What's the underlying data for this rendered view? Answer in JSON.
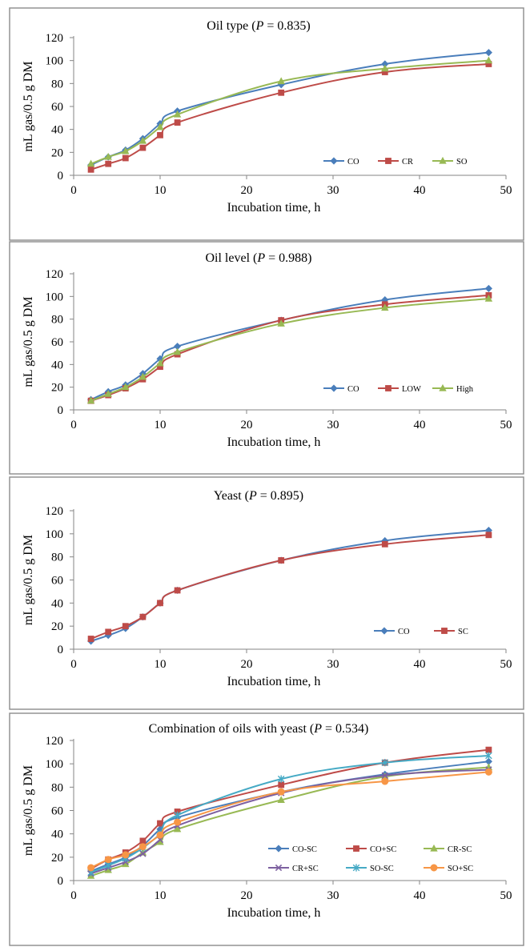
{
  "chart_data": [
    {
      "type": "line",
      "title_prefix": "Oil type (",
      "title_p": "P",
      "title_suffix": " = 0.835)",
      "xlabel": "Incubation time, h",
      "ylabel": "mL gas/0.5 g DM",
      "xlim": [
        0,
        50
      ],
      "ylim": [
        0,
        120
      ],
      "xticks": [
        0,
        10,
        20,
        30,
        40,
        50
      ],
      "yticks": [
        0,
        20,
        40,
        60,
        80,
        100,
        120
      ],
      "legend_position": "bottom-right",
      "x": [
        2,
        4,
        6,
        8,
        10,
        12,
        24,
        36,
        48
      ],
      "series": [
        {
          "name": "CO",
          "color": "#4a7ebb",
          "marker": "diamond",
          "values": [
            9,
            16,
            22,
            32,
            45,
            56,
            79,
            97,
            107
          ]
        },
        {
          "name": "CR",
          "color": "#be4b48",
          "marker": "square",
          "values": [
            5,
            10,
            15,
            24,
            35,
            46,
            72,
            90,
            97
          ]
        },
        {
          "name": "SO",
          "color": "#98b954",
          "marker": "triangle",
          "values": [
            10,
            16,
            21,
            30,
            42,
            53,
            82,
            93,
            100
          ]
        }
      ]
    },
    {
      "type": "line",
      "title_prefix": "Oil level (",
      "title_p": "P",
      "title_suffix": " = 0.988)",
      "xlabel": "Incubation time, h",
      "ylabel": "mL gas/0.5 g DM",
      "xlim": [
        0,
        50
      ],
      "ylim": [
        0,
        120
      ],
      "xticks": [
        0,
        10,
        20,
        30,
        40,
        50
      ],
      "yticks": [
        0,
        20,
        40,
        60,
        80,
        100,
        120
      ],
      "legend_position": "bottom-right",
      "x": [
        2,
        4,
        6,
        8,
        10,
        12,
        24,
        36,
        48
      ],
      "series": [
        {
          "name": "CO",
          "color": "#4a7ebb",
          "marker": "diamond",
          "values": [
            9,
            16,
            22,
            32,
            45,
            56,
            79,
            97,
            107
          ]
        },
        {
          "name": "LOW",
          "color": "#be4b48",
          "marker": "square",
          "values": [
            8,
            13,
            19,
            27,
            38,
            49,
            79,
            93,
            101
          ]
        },
        {
          "name": "High",
          "color": "#98b954",
          "marker": "triangle",
          "values": [
            8,
            14,
            20,
            29,
            41,
            51,
            76,
            90,
            98
          ]
        }
      ]
    },
    {
      "type": "line",
      "title_prefix": "Yeast (",
      "title_p": "P",
      "title_suffix": " = 0.895)",
      "xlabel": "Incubation time, h",
      "ylabel": "mL gas/0.5 g DM",
      "xlim": [
        0,
        50
      ],
      "ylim": [
        0,
        120
      ],
      "xticks": [
        0,
        10,
        20,
        30,
        40,
        50
      ],
      "yticks": [
        0,
        20,
        40,
        60,
        80,
        100,
        120
      ],
      "legend_position": "bottom-right",
      "x": [
        2,
        4,
        6,
        8,
        10,
        12,
        24,
        36,
        48
      ],
      "series": [
        {
          "name": "CO",
          "color": "#4a7ebb",
          "marker": "diamond",
          "values": [
            7,
            12,
            18,
            28,
            40,
            51,
            77,
            94,
            103
          ]
        },
        {
          "name": "SC",
          "color": "#be4b48",
          "marker": "square",
          "values": [
            9,
            15,
            20,
            28,
            40,
            51,
            77,
            91,
            99
          ]
        }
      ]
    },
    {
      "type": "line",
      "title_prefix": "Combination of oils with yeast (",
      "title_p": "P",
      "title_suffix": " = 0.534)",
      "xlabel": "Incubation time, h",
      "ylabel": "mL gas/0.5 g DM",
      "xlim": [
        0,
        50
      ],
      "ylim": [
        0,
        120
      ],
      "xticks": [
        0,
        10,
        20,
        30,
        40,
        50
      ],
      "yticks": [
        0,
        20,
        40,
        60,
        80,
        100,
        120
      ],
      "legend_position": "bottom-right",
      "x": [
        2,
        4,
        6,
        8,
        10,
        12,
        24,
        36,
        48
      ],
      "series": [
        {
          "name": "CO-SC",
          "color": "#4a7ebb",
          "marker": "diamond",
          "values": [
            8,
            14,
            20,
            30,
            44,
            54,
            76,
            91,
            102
          ]
        },
        {
          "name": "CO+SC",
          "color": "#be4b48",
          "marker": "square",
          "values": [
            10,
            18,
            24,
            34,
            49,
            59,
            82,
            101,
            112
          ]
        },
        {
          "name": "CR-SC",
          "color": "#98b954",
          "marker": "triangle",
          "values": [
            4,
            9,
            14,
            24,
            33,
            44,
            69,
            89,
            97
          ]
        },
        {
          "name": "CR+SC",
          "color": "#7d60a0",
          "marker": "x",
          "values": [
            6,
            11,
            16,
            23,
            35,
            47,
            75,
            90,
            95
          ]
        },
        {
          "name": "SO-SC",
          "color": "#46aac5",
          "marker": "star",
          "values": [
            7,
            13,
            19,
            28,
            40,
            56,
            87,
            101,
            107
          ]
        },
        {
          "name": "SO+SC",
          "color": "#f79646",
          "marker": "circle",
          "values": [
            11,
            18,
            22,
            29,
            39,
            50,
            76,
            85,
            93
          ]
        }
      ]
    }
  ]
}
